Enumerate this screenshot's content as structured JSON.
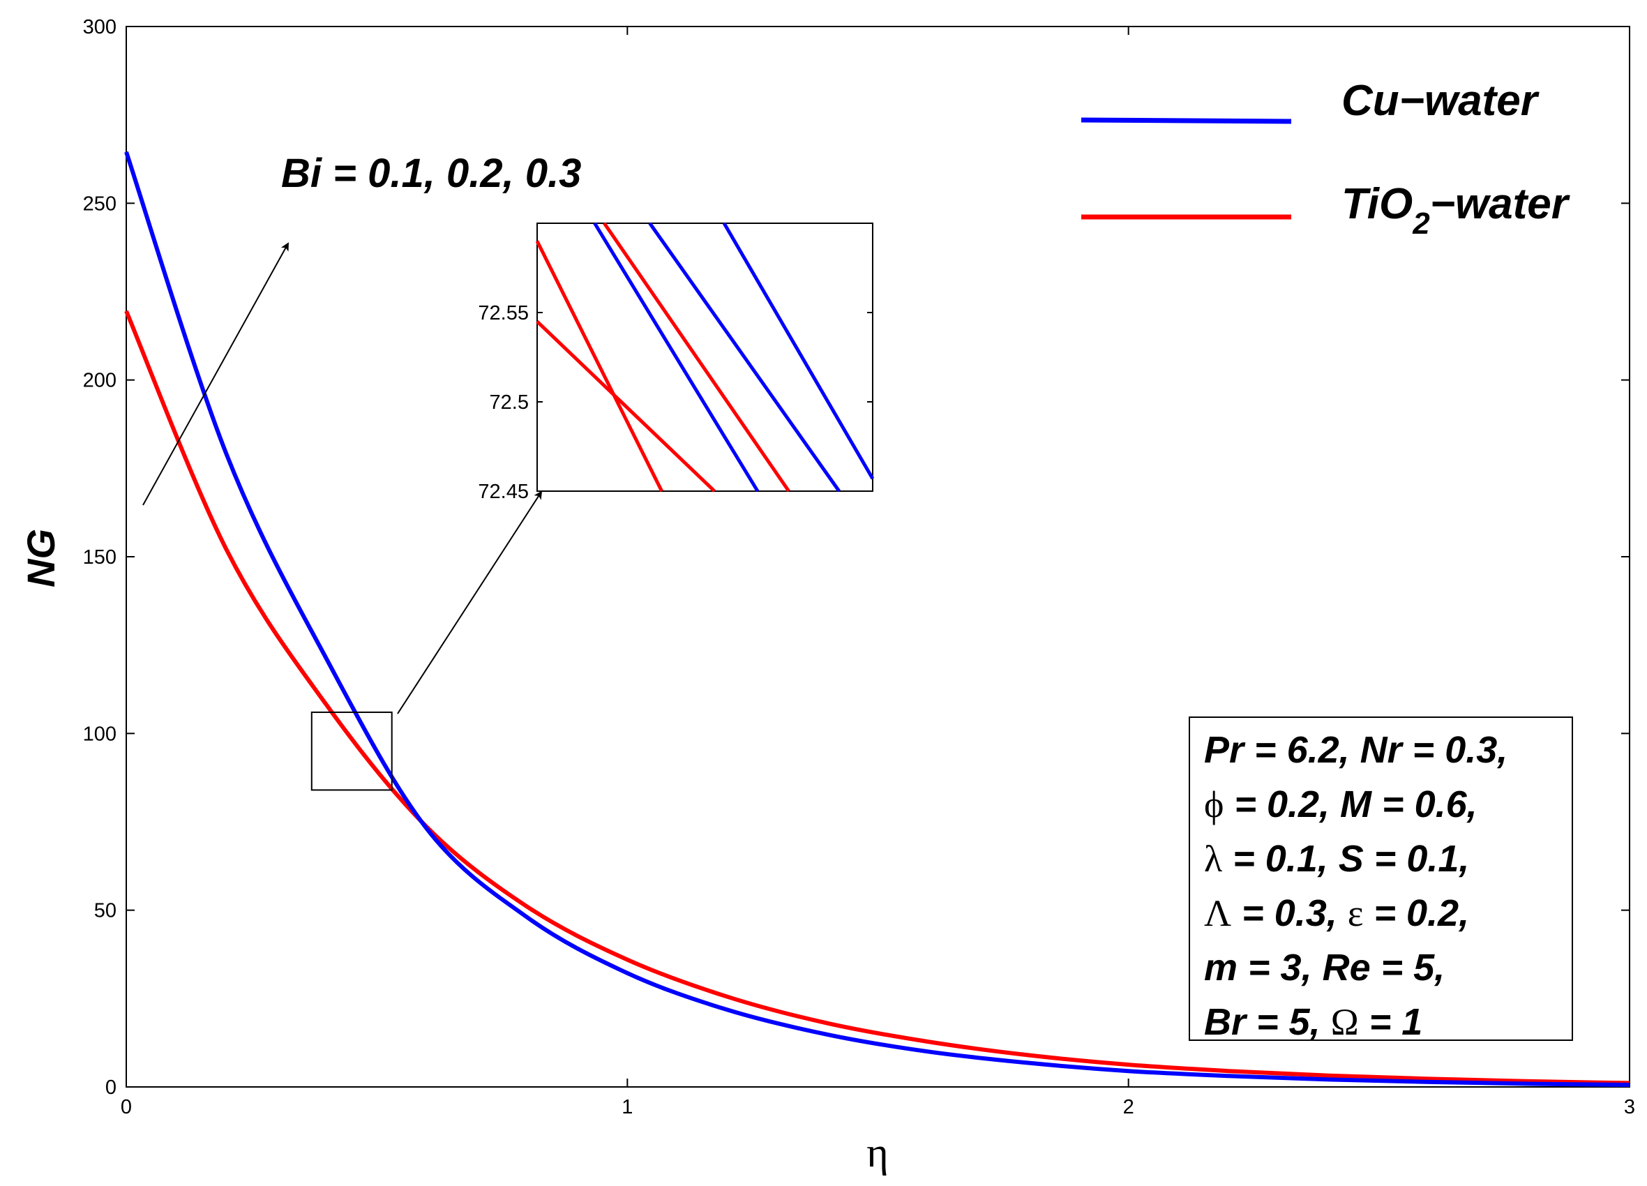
{
  "chart_data": {
    "type": "line",
    "xlabel": "η",
    "ylabel": "NG",
    "xlim": [
      0,
      3
    ],
    "ylim": [
      0,
      300
    ],
    "xticks": [
      "0",
      "1",
      "2",
      "3"
    ],
    "yticks": [
      "0",
      "50",
      "100",
      "150",
      "200",
      "250",
      "300"
    ],
    "x": [
      0,
      0.2,
      0.4,
      0.6,
      0.8,
      1.0,
      1.2,
      1.4,
      1.6,
      1.8,
      2.0,
      2.2,
      2.4,
      2.6,
      2.8,
      3.0
    ],
    "series": [
      {
        "name": "Cu−water",
        "color": "#0000ff",
        "values": [
          264.5,
          179.0,
          121.0,
          73.0,
          48.0,
          32.2,
          21.8,
          14.8,
          10.0,
          6.8,
          4.5,
          3.1,
          2.1,
          1.4,
          0.9,
          0.6
        ]
      },
      {
        "name": "TiO2−water",
        "color": "#ff0000",
        "values": [
          219.5,
          152.0,
          108.0,
          73.5,
          51.0,
          36.0,
          25.5,
          18.0,
          12.8,
          9.0,
          6.3,
          4.5,
          3.2,
          2.3,
          1.6,
          1.1
        ]
      }
    ],
    "legend": {
      "position": "top-right",
      "entries": [
        {
          "label": "Cu−water",
          "color": "#0000ff"
        },
        {
          "label_main": "TiO",
          "label_sub": "2",
          "label_rest": "−water",
          "color": "#ff0000"
        }
      ]
    },
    "annotation_bi": "Bi = 0.1, 0.2, 0.3",
    "zoom_box": {
      "xrange": [
        0.37,
        0.53
      ],
      "yrange": [
        84,
        106
      ]
    },
    "inset": {
      "ylim": [
        72.45,
        72.6
      ],
      "yticks": [
        "72.45",
        "72.5",
        "72.55"
      ],
      "xlim": [
        0.645,
        0.659
      ],
      "lines": [
        {
          "color": "#ff0000",
          "x": [
            0.645,
            0.6502
          ],
          "y": [
            72.59,
            72.45
          ]
        },
        {
          "color": "#ff0000",
          "x": [
            0.645,
            0.6524
          ],
          "y": [
            72.545,
            72.45
          ]
        },
        {
          "color": "#ff0000",
          "x": [
            0.6478,
            0.6555
          ],
          "y": [
            72.6,
            72.45
          ]
        },
        {
          "color": "#0000ff",
          "x": [
            0.6474,
            0.6542
          ],
          "y": [
            72.6,
            72.45
          ]
        },
        {
          "color": "#0000ff",
          "x": [
            0.6497,
            0.6576
          ],
          "y": [
            72.6,
            72.45
          ]
        },
        {
          "color": "#0000ff",
          "x": [
            0.6528,
            0.659
          ],
          "y": [
            72.6,
            72.457
          ]
        }
      ]
    },
    "params": {
      "line1": "Pr = 6.2, Nr = 0.3,",
      "line2_sym": "ϕ",
      "line2_rest": " = 0.2, M = 0.6,",
      "line3_sym": "λ",
      "line3_rest": " = 0.1, S = 0.1,",
      "line4_sym1": "Λ",
      "line4_mid": " = 0.3, ",
      "line4_sym2": "ε",
      "line4_rest": " = 0.2,",
      "line5": "m = 3, Re = 5,",
      "line6_pre": "Br = 5, ",
      "line6_sym": "Ω",
      "line6_rest": " = 1"
    }
  }
}
